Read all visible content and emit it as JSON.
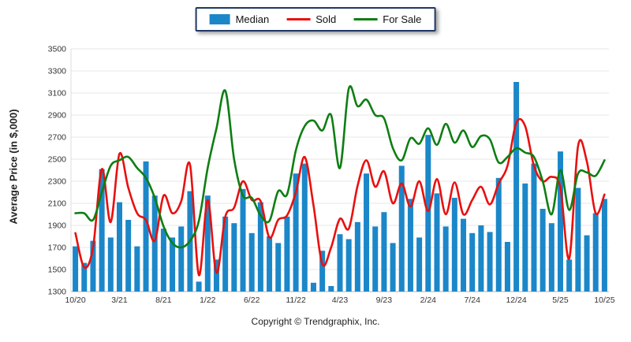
{
  "chart_data": {
    "type": "combo",
    "title": "",
    "ylabel": "Average Price (in $,000)",
    "xlabel": "",
    "ylim": [
      1300,
      3500
    ],
    "ytick_step": 200,
    "xtick_every": 5,
    "grid": true,
    "legend_position": "top-center",
    "categories": [
      "10/20",
      "11/20",
      "12/20",
      "1/21",
      "2/21",
      "3/21",
      "4/21",
      "5/21",
      "6/21",
      "7/21",
      "8/21",
      "9/21",
      "10/21",
      "11/21",
      "12/21",
      "1/22",
      "2/22",
      "3/22",
      "4/22",
      "5/22",
      "6/22",
      "7/22",
      "8/22",
      "9/22",
      "10/22",
      "11/22",
      "12/22",
      "1/23",
      "2/23",
      "3/23",
      "4/23",
      "5/23",
      "6/23",
      "7/23",
      "8/23",
      "9/23",
      "10/23",
      "11/23",
      "12/23",
      "1/24",
      "2/24",
      "3/24",
      "4/24",
      "5/24",
      "6/24",
      "7/24",
      "8/24",
      "9/24",
      "10/24",
      "11/24",
      "12/24",
      "1/25",
      "2/25",
      "3/25",
      "4/25",
      "5/25",
      "6/25",
      "7/25",
      "8/25",
      "9/25",
      "10/25"
    ],
    "visible_tick_labels": [
      "10/20",
      "3/21",
      "8/21",
      "1/22",
      "6/22",
      "11/22",
      "4/23",
      "9/23",
      "2/24",
      "7/24",
      "12/24",
      "5/25",
      "10/25"
    ],
    "series": [
      {
        "name": "Median",
        "type": "bar",
        "color": "#1b87c9",
        "values": [
          1710,
          1560,
          1760,
          2410,
          1790,
          2110,
          1950,
          1710,
          2480,
          2170,
          1870,
          1790,
          1890,
          2210,
          1390,
          2170,
          1590,
          1980,
          1920,
          2230,
          1830,
          2110,
          1800,
          1740,
          1980,
          2370,
          2460,
          1380,
          1670,
          1350,
          1820,
          1775,
          1930,
          2370,
          1890,
          2020,
          1740,
          2440,
          2140,
          1790,
          2720,
          2190,
          1890,
          2150,
          1960,
          1830,
          1900,
          1840,
          2330,
          1750,
          3200,
          2280,
          2460,
          2050,
          1920,
          2570,
          1590,
          2240,
          1810,
          2010,
          2140
        ]
      },
      {
        "name": "Sold",
        "type": "line",
        "color": "#e8100f",
        "values": [
          1830,
          1520,
          1700,
          2410,
          1930,
          2550,
          2240,
          2010,
          1950,
          1760,
          2170,
          2010,
          2120,
          2450,
          1450,
          2130,
          1470,
          1980,
          2060,
          2300,
          2130,
          2120,
          1790,
          1950,
          1990,
          2200,
          2520,
          2080,
          1550,
          1700,
          1960,
          1870,
          2260,
          2490,
          2250,
          2390,
          2100,
          2280,
          2070,
          2300,
          2030,
          2320,
          2000,
          2290,
          2000,
          2130,
          2250,
          2090,
          2280,
          2440,
          2830,
          2800,
          2440,
          2300,
          2340,
          2240,
          1600,
          2620,
          2480,
          2010,
          2180
        ]
      },
      {
        "name": "For Sale",
        "type": "line",
        "color": "#0e7e12",
        "values": [
          2010,
          2010,
          1950,
          2200,
          2440,
          2490,
          2520,
          2420,
          2330,
          2150,
          1890,
          1740,
          1700,
          1760,
          1940,
          2420,
          2780,
          3120,
          2500,
          2170,
          2150,
          1990,
          1940,
          2210,
          2180,
          2580,
          2800,
          2850,
          2760,
          2900,
          2420,
          3140,
          2980,
          3040,
          2900,
          2870,
          2600,
          2490,
          2690,
          2640,
          2780,
          2630,
          2820,
          2650,
          2760,
          2610,
          2710,
          2680,
          2470,
          2520,
          2600,
          2560,
          2520,
          2300,
          2000,
          2400,
          2040,
          2370,
          2380,
          2350,
          2490
        ]
      }
    ]
  },
  "legend": [
    {
      "label": "Median",
      "color": "#1b87c9",
      "type": "bar"
    },
    {
      "label": "Sold",
      "color": "#e8100f",
      "type": "line"
    },
    {
      "label": "For Sale",
      "color": "#0e7e12",
      "type": "line"
    }
  ],
  "axis": {
    "y_title": "Average Price (in $,000)",
    "text_color": "#333333",
    "grid_color": "#e7e7e7",
    "axis_line_color": "#b5b5b5"
  },
  "footer": {
    "text": "Copyright © Trendgraphix, Inc."
  }
}
